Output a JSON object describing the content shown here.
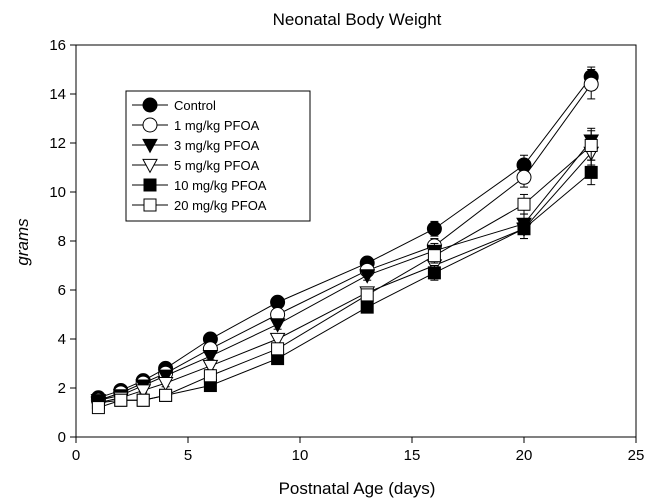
{
  "chart_data": {
    "type": "line",
    "title": "Neonatal Body Weight",
    "xlabel": "Postnatal Age (days)",
    "ylabel": "grams",
    "xlim": [
      0,
      25
    ],
    "ylim": [
      0,
      16
    ],
    "xticks": [
      0,
      5,
      10,
      15,
      20,
      25
    ],
    "yticks": [
      0,
      2,
      4,
      6,
      8,
      10,
      12,
      14,
      16
    ],
    "grid": false,
    "legend_position": "top-left",
    "x": [
      1,
      2,
      3,
      4,
      6,
      9,
      13,
      16,
      20,
      23
    ],
    "series": [
      {
        "name": "Control",
        "marker": "circle-filled",
        "values": [
          1.6,
          1.9,
          2.3,
          2.8,
          4.0,
          5.5,
          7.1,
          8.5,
          11.1,
          14.7
        ],
        "errors": [
          0.1,
          0.1,
          0.1,
          0.15,
          0.15,
          0.2,
          0.2,
          0.3,
          0.4,
          0.4
        ]
      },
      {
        "name": "1 mg/kg PFOA",
        "marker": "circle-open",
        "values": [
          1.5,
          1.8,
          2.2,
          2.6,
          3.6,
          5.0,
          6.8,
          7.8,
          10.6,
          14.4
        ],
        "errors": [
          0.1,
          0.1,
          0.1,
          0.15,
          0.15,
          0.2,
          0.2,
          0.3,
          0.4,
          0.6
        ]
      },
      {
        "name": "3 mg/kg PFOA",
        "marker": "triangle-down-filled",
        "values": [
          1.5,
          1.7,
          2.1,
          2.5,
          3.3,
          4.6,
          6.6,
          7.6,
          8.7,
          12.1
        ],
        "errors": [
          0.1,
          0.1,
          0.1,
          0.15,
          0.15,
          0.2,
          0.2,
          0.3,
          0.4,
          0.5
        ]
      },
      {
        "name": "5 mg/kg PFOA",
        "marker": "triangle-down-open",
        "values": [
          1.4,
          1.6,
          1.9,
          2.2,
          2.9,
          4.0,
          5.9,
          7.0,
          8.5,
          11.6
        ],
        "errors": [
          0.1,
          0.1,
          0.1,
          0.15,
          0.15,
          0.2,
          0.2,
          0.3,
          0.4,
          0.5
        ]
      },
      {
        "name": "10 mg/kg PFOA",
        "marker": "square-filled",
        "values": [
          1.4,
          1.5,
          1.5,
          1.7,
          2.1,
          3.2,
          5.3,
          6.7,
          8.5,
          10.8
        ],
        "errors": [
          0.1,
          0.1,
          0.1,
          0.1,
          0.15,
          0.2,
          0.2,
          0.3,
          0.4,
          0.5
        ]
      },
      {
        "name": "20 mg/kg PFOA",
        "marker": "square-open",
        "values": [
          1.2,
          1.5,
          1.5,
          1.7,
          2.5,
          3.6,
          5.8,
          7.4,
          9.5,
          11.9
        ],
        "errors": [
          0.1,
          0.1,
          0.1,
          0.1,
          0.15,
          0.2,
          0.2,
          0.3,
          0.4,
          0.6
        ]
      }
    ]
  }
}
